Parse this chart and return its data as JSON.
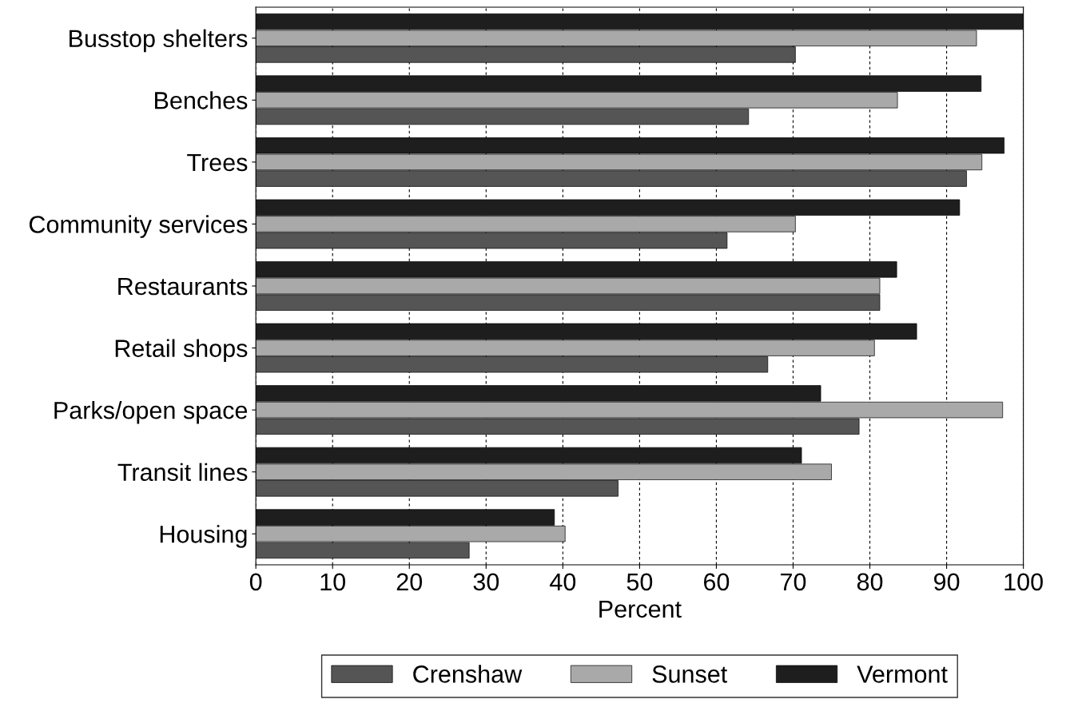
{
  "chart_data": {
    "type": "bar",
    "orientation": "horizontal",
    "xlabel": "Percent",
    "categories": [
      "Busstop shelters",
      "Benches",
      "Trees",
      "Community services",
      "Restaurants",
      "Retail shops",
      "Parks/open space",
      "Transit lines",
      "Housing"
    ],
    "series": [
      {
        "name": "Crenshaw",
        "color": "#555555",
        "values": [
          70.3,
          64.2,
          92.6,
          61.4,
          81.3,
          66.7,
          78.6,
          47.2,
          27.8
        ]
      },
      {
        "name": "Sunset",
        "color": "#a9a9a9",
        "values": [
          93.9,
          83.6,
          94.6,
          70.3,
          81.3,
          80.6,
          97.3,
          75.0,
          40.3
        ]
      },
      {
        "name": "Vermont",
        "color": "#1e1e1e",
        "values": [
          100,
          94.5,
          97.5,
          91.7,
          83.5,
          86.1,
          73.6,
          71.1,
          38.9
        ]
      }
    ],
    "xlim": [
      0,
      100
    ],
    "xticks": [
      0,
      10,
      20,
      30,
      40,
      50,
      60,
      70,
      80,
      90,
      100
    ],
    "grid": "x",
    "legend": "bottom"
  }
}
